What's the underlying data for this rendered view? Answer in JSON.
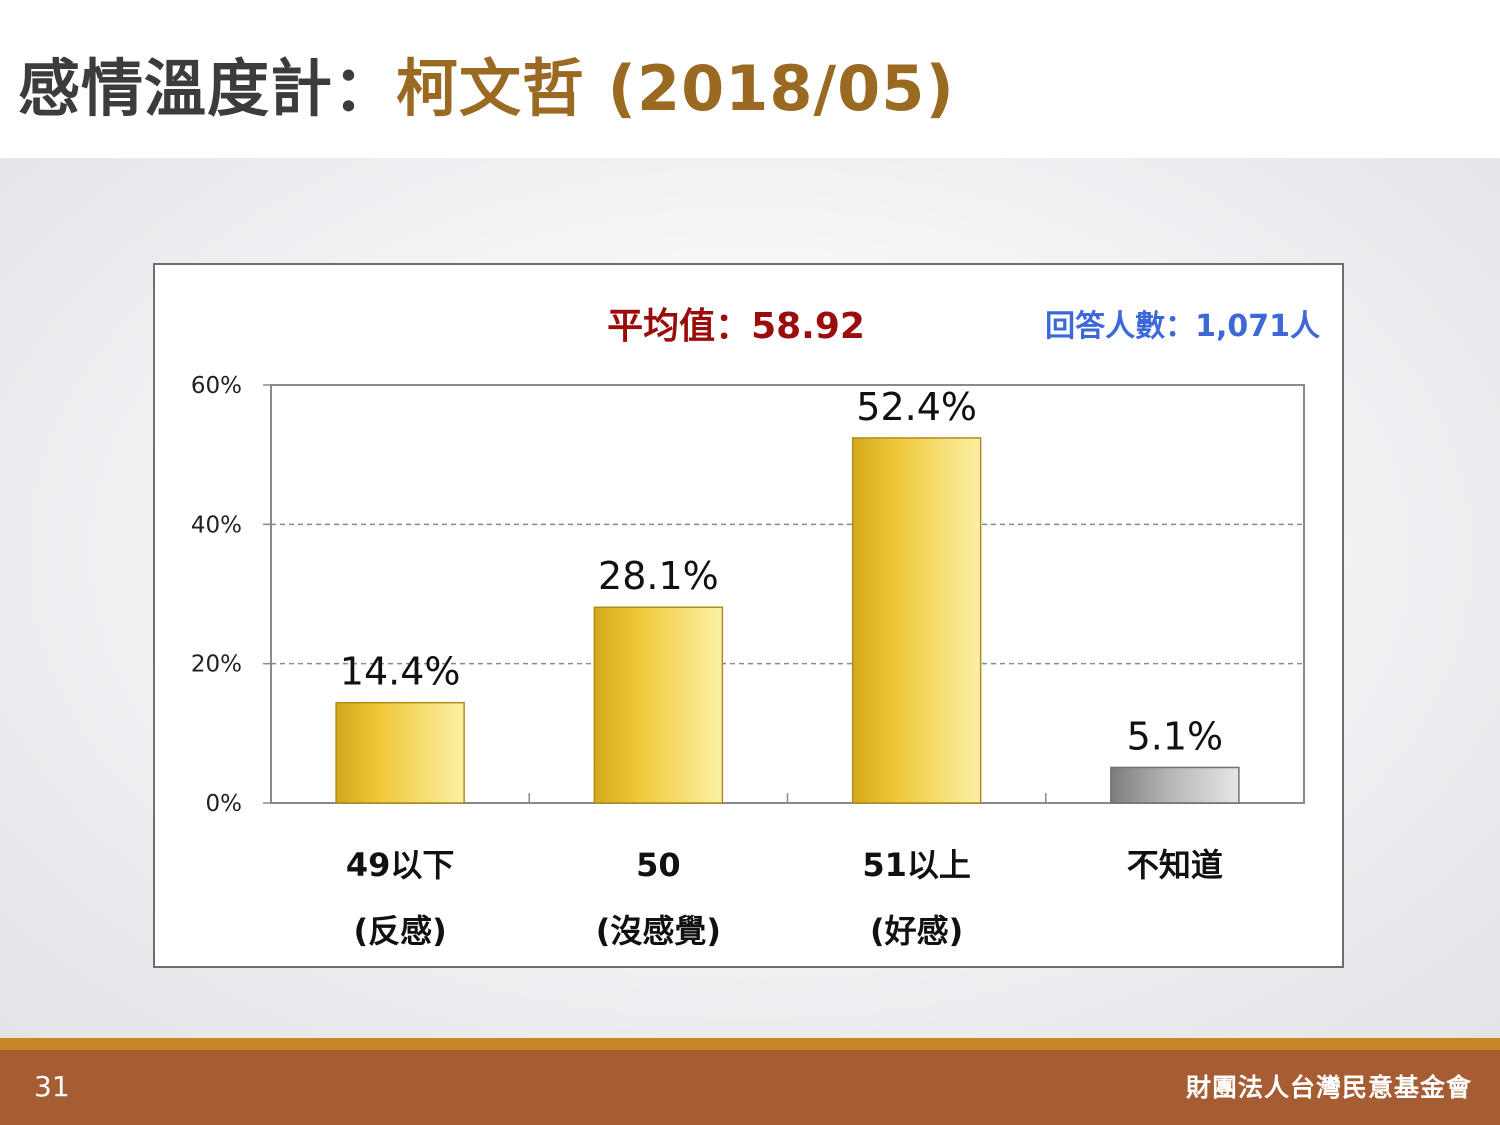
{
  "slide": {
    "title_main": "感情溫度計：",
    "title_accent": "柯文哲",
    "title_date": "(2018/05)",
    "page_number": "31",
    "organization": "財團法人台灣民意基金會"
  },
  "colors": {
    "title": "#3c3c3c",
    "accent": "#9a6a22",
    "bar_gold": "#efc93a",
    "bar_gray": "#9a9a9a",
    "mean": "#9b0d0d",
    "respondents": "#3d68d8",
    "footer": "#a65d33",
    "footer_line": "#c98528"
  },
  "chart_data": {
    "type": "bar",
    "mean_label": "平均值：58.92",
    "respondents_label": "回答人數：1,071人",
    "categories": [
      {
        "line1": "49以下",
        "line2": "(反感)"
      },
      {
        "line1": "50",
        "line2": "(沒感覺)"
      },
      {
        "line1": "51以上",
        "line2": "(好感)"
      },
      {
        "line1": "不知道",
        "line2": ""
      }
    ],
    "values": [
      14.4,
      28.1,
      52.4,
      5.1
    ],
    "value_labels": [
      "14.4%",
      "28.1%",
      "52.4%",
      "5.1%"
    ],
    "bar_colors": [
      "#efc93a",
      "#efc93a",
      "#efc93a",
      "#9a9a9a"
    ],
    "ylim": [
      0,
      60
    ],
    "yticks": [
      0,
      20,
      40,
      60
    ],
    "ytick_labels": [
      "0%",
      "20%",
      "40%",
      "60%"
    ],
    "grid": true
  }
}
